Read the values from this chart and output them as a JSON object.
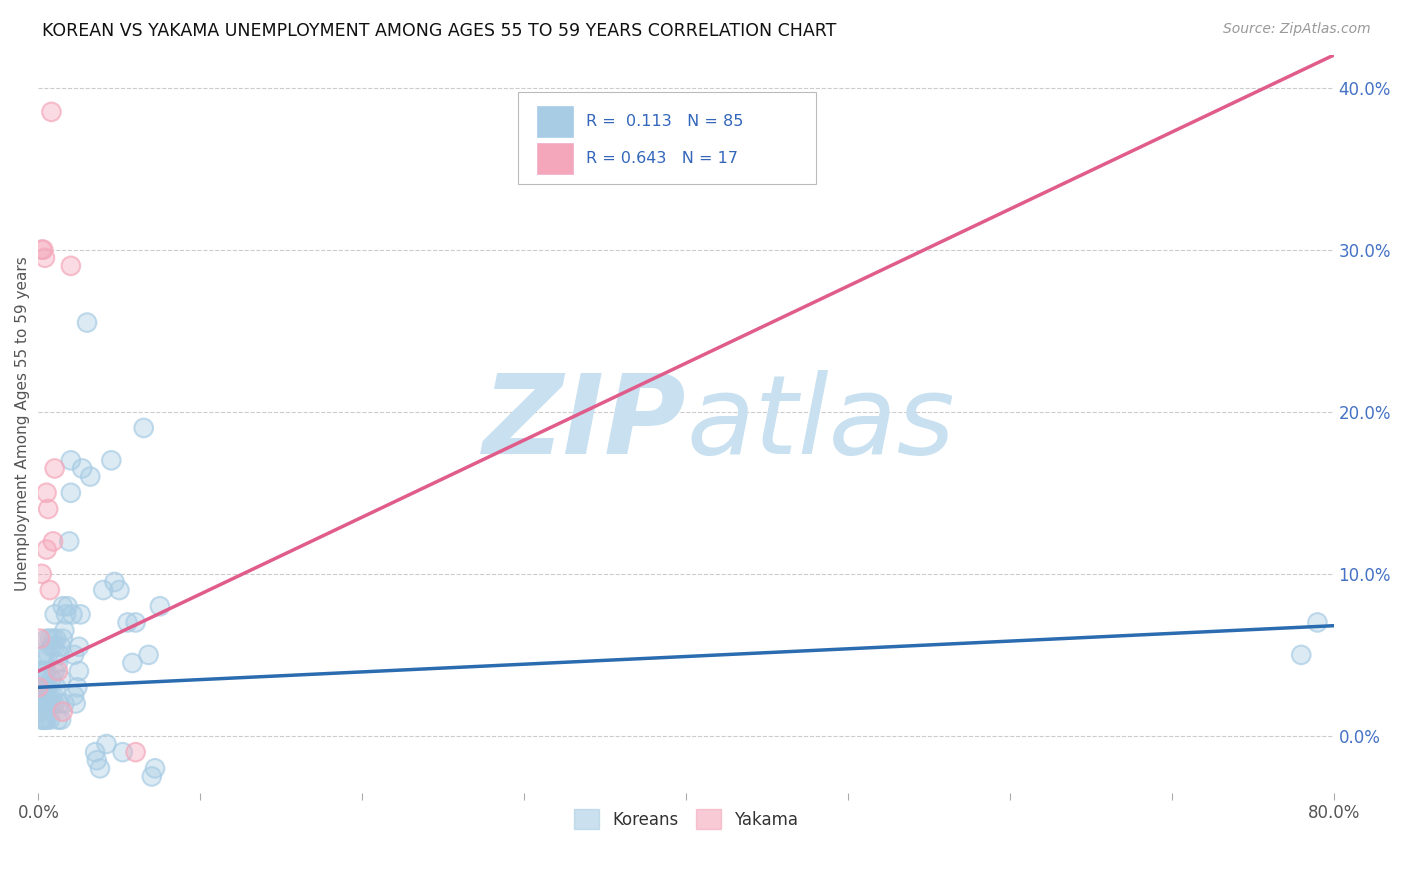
{
  "title": "KOREAN VS YAKAMA UNEMPLOYMENT AMONG AGES 55 TO 59 YEARS CORRELATION CHART",
  "source": "Source: ZipAtlas.com",
  "ylabel": "Unemployment Among Ages 55 to 59 years",
  "xlim": [
    0.0,
    0.8
  ],
  "ylim": [
    -0.035,
    0.42
  ],
  "xticks": [
    0.0,
    0.1,
    0.2,
    0.3,
    0.4,
    0.5,
    0.6,
    0.7,
    0.8
  ],
  "xticklabels_show": [
    "0.0%",
    "",
    "",
    "",
    "",
    "",
    "",
    "",
    "80.0%"
  ],
  "yticks": [
    0.0,
    0.1,
    0.2,
    0.3,
    0.4
  ],
  "yticklabels_right": [
    "0.0%",
    "10.0%",
    "20.0%",
    "30.0%",
    "40.0%"
  ],
  "korean_color": "#a8cce4",
  "yakama_color": "#f4a7ba",
  "korean_line_color": "#2b6cb0",
  "yakama_line_color": "#e05c8a",
  "korean_R": 0.113,
  "korean_N": 85,
  "yakama_R": 0.643,
  "yakama_N": 17,
  "watermark_zip": "ZIP",
  "watermark_atlas": "atlas",
  "watermark_color": "#c8e0f0",
  "legend_label_korean": "Koreans",
  "legend_label_yakama": "Yakama",
  "korean_scatter_x": [
    0.0,
    0.001,
    0.001,
    0.002,
    0.002,
    0.002,
    0.002,
    0.003,
    0.003,
    0.003,
    0.003,
    0.003,
    0.004,
    0.004,
    0.004,
    0.004,
    0.004,
    0.005,
    0.005,
    0.005,
    0.005,
    0.005,
    0.006,
    0.006,
    0.006,
    0.007,
    0.007,
    0.007,
    0.008,
    0.008,
    0.008,
    0.009,
    0.009,
    0.01,
    0.01,
    0.01,
    0.01,
    0.011,
    0.011,
    0.012,
    0.012,
    0.013,
    0.013,
    0.014,
    0.014,
    0.014,
    0.015,
    0.015,
    0.016,
    0.016,
    0.017,
    0.018,
    0.019,
    0.02,
    0.02,
    0.021,
    0.022,
    0.022,
    0.023,
    0.024,
    0.025,
    0.025,
    0.026,
    0.027,
    0.03,
    0.032,
    0.035,
    0.036,
    0.038,
    0.04,
    0.042,
    0.045,
    0.047,
    0.05,
    0.052,
    0.055,
    0.058,
    0.06,
    0.065,
    0.068,
    0.07,
    0.072,
    0.075,
    0.78,
    0.79
  ],
  "korean_scatter_y": [
    0.02,
    0.015,
    0.025,
    0.01,
    0.02,
    0.03,
    0.04,
    0.01,
    0.02,
    0.03,
    0.04,
    0.05,
    0.01,
    0.02,
    0.03,
    0.04,
    0.05,
    0.01,
    0.02,
    0.03,
    0.04,
    0.06,
    0.02,
    0.03,
    0.05,
    0.01,
    0.025,
    0.06,
    0.02,
    0.035,
    0.055,
    0.025,
    0.06,
    0.02,
    0.04,
    0.055,
    0.075,
    0.03,
    0.06,
    0.01,
    0.045,
    0.02,
    0.05,
    0.01,
    0.035,
    0.055,
    0.06,
    0.08,
    0.02,
    0.065,
    0.075,
    0.08,
    0.12,
    0.15,
    0.17,
    0.075,
    0.025,
    0.05,
    0.02,
    0.03,
    0.04,
    0.055,
    0.075,
    0.165,
    0.255,
    0.16,
    -0.01,
    -0.015,
    -0.02,
    0.09,
    -0.005,
    0.17,
    0.095,
    0.09,
    -0.01,
    0.07,
    0.045,
    0.07,
    0.19,
    0.05,
    -0.025,
    -0.02,
    0.08,
    0.05,
    0.07
  ],
  "yakama_scatter_x": [
    0.0,
    0.001,
    0.002,
    0.002,
    0.003,
    0.004,
    0.005,
    0.005,
    0.006,
    0.007,
    0.008,
    0.009,
    0.01,
    0.012,
    0.015,
    0.02,
    0.06
  ],
  "yakama_scatter_y": [
    0.03,
    0.06,
    0.1,
    0.3,
    0.3,
    0.295,
    0.15,
    0.115,
    0.14,
    0.09,
    0.385,
    0.12,
    0.165,
    0.04,
    0.015,
    0.29,
    -0.01
  ],
  "korean_trend_x": [
    0.0,
    0.8
  ],
  "korean_trend_y": [
    0.03,
    0.068
  ],
  "yakama_trend_x": [
    0.0,
    0.8
  ],
  "yakama_trend_y": [
    0.04,
    0.42
  ]
}
